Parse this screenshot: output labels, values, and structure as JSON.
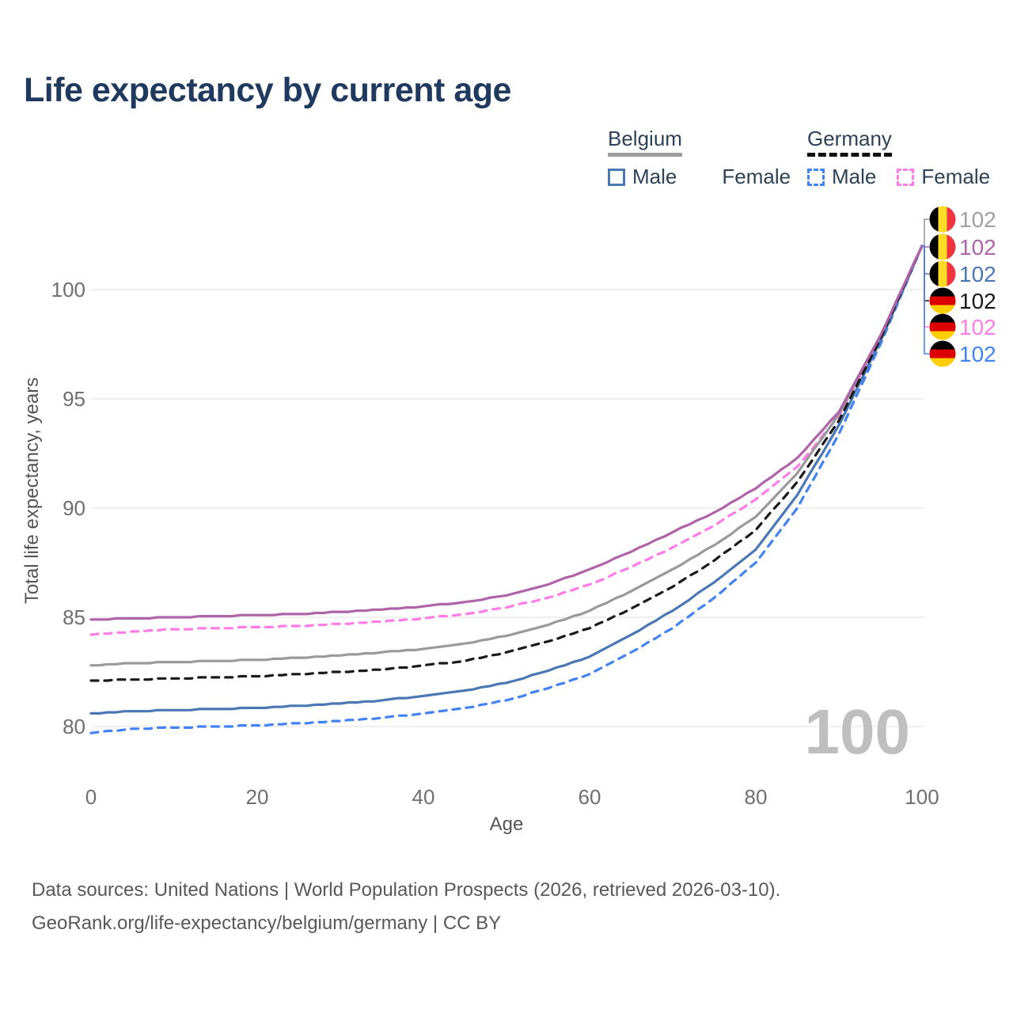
{
  "title": "Life expectancy by current age",
  "legend": {
    "groups": [
      {
        "label": "Belgium",
        "underline": "solid",
        "items": [
          {
            "label": "Male",
            "color": "#4a78b5",
            "dashed": false
          },
          {
            "label": "Female",
            "color": "#b064a8",
            "dashed": false
          }
        ]
      },
      {
        "label": "Germany",
        "underline": "dashed",
        "items": [
          {
            "label": "Male",
            "color": "#4183f2",
            "dashed": true
          },
          {
            "label": "Female",
            "color": "#ff7be5",
            "dashed": true
          }
        ]
      }
    ]
  },
  "footer": {
    "line1": "Data sources: United Nations | World Population Prospects (2026, retrieved 2026-03-10).",
    "line2": "GeoRank.org/life-expectancy/belgium/germany | CC BY"
  },
  "chart_data": {
    "type": "line",
    "title": "Life expectancy by current age",
    "xlabel": "Age",
    "ylabel": "Total life expectancy, years",
    "x_ticks": [
      0,
      20,
      40,
      60,
      80,
      100
    ],
    "y_ticks": [
      80,
      85,
      90,
      95,
      100
    ],
    "xlim": [
      0,
      100
    ],
    "ylim": [
      79,
      103
    ],
    "grid": "horizontal",
    "legend_position": "top-right",
    "watermark": "100",
    "ages": [
      0,
      5,
      10,
      15,
      20,
      25,
      30,
      35,
      40,
      45,
      50,
      55,
      60,
      65,
      70,
      75,
      80,
      85,
      90,
      95,
      100
    ],
    "series": [
      {
        "name": "Belgium",
        "country": "Belgium",
        "sex": "Both",
        "color": "#9a9a9a",
        "label_color": "#a0a0a0",
        "dashed": false,
        "flag": "belgium",
        "end_label": "102",
        "z": 3,
        "values": [
          82.8,
          82.9,
          82.95,
          83.0,
          83.05,
          83.15,
          83.25,
          83.4,
          83.55,
          83.8,
          84.15,
          84.65,
          85.3,
          86.2,
          87.2,
          88.3,
          89.6,
          91.6,
          94.3,
          97.9,
          102
        ]
      },
      {
        "name": "Belgium Female",
        "country": "Belgium",
        "sex": "Female",
        "color": "#b064a8",
        "label_color": "#b064a8",
        "dashed": false,
        "flag": "belgium",
        "end_label": "102",
        "z": 5,
        "values": [
          84.9,
          84.95,
          85.0,
          85.05,
          85.1,
          85.15,
          85.25,
          85.35,
          85.5,
          85.7,
          86.0,
          86.5,
          87.2,
          88.0,
          88.9,
          89.8,
          90.9,
          92.3,
          94.4,
          97.9,
          102
        ]
      },
      {
        "name": "Belgium Male",
        "country": "Belgium",
        "sex": "Male",
        "color": "#4a78b5",
        "label_color": "#4a78b5",
        "dashed": false,
        "flag": "belgium",
        "end_label": "102",
        "z": 2,
        "values": [
          80.6,
          80.7,
          80.75,
          80.8,
          80.85,
          80.95,
          81.05,
          81.2,
          81.4,
          81.65,
          82.0,
          82.55,
          83.2,
          84.2,
          85.3,
          86.6,
          88.1,
          90.6,
          93.8,
          97.65,
          102
        ]
      },
      {
        "name": "Germany",
        "country": "Germany",
        "sex": "Both",
        "color": "#1a1a1a",
        "label_color": "#1a1a1a",
        "dashed": true,
        "flag": "germany",
        "end_label": "102",
        "z": 4,
        "values": [
          82.1,
          82.15,
          82.2,
          82.25,
          82.3,
          82.4,
          82.5,
          82.6,
          82.8,
          83.0,
          83.4,
          83.9,
          84.5,
          85.4,
          86.4,
          87.6,
          89.0,
          91.2,
          94.0,
          97.75,
          102
        ]
      },
      {
        "name": "Germany Female",
        "country": "Germany",
        "sex": "Female",
        "color": "#ff7be5",
        "label_color": "#ff7be5",
        "dashed": true,
        "flag": "germany",
        "end_label": "102",
        "z": 1,
        "values": [
          84.2,
          84.35,
          84.45,
          84.5,
          84.55,
          84.6,
          84.7,
          84.8,
          84.95,
          85.15,
          85.45,
          85.9,
          86.5,
          87.3,
          88.2,
          89.2,
          90.4,
          91.9,
          94.2,
          97.85,
          102
        ]
      },
      {
        "name": "Germany Male",
        "country": "Germany",
        "sex": "Male",
        "color": "#4183f2",
        "label_color": "#4183f2",
        "dashed": true,
        "flag": "germany",
        "end_label": "102",
        "z": 0,
        "values": [
          79.7,
          79.9,
          79.95,
          80.0,
          80.05,
          80.15,
          80.25,
          80.4,
          80.6,
          80.85,
          81.2,
          81.75,
          82.4,
          83.4,
          84.5,
          85.9,
          87.5,
          90.0,
          93.4,
          97.5,
          102
        ]
      }
    ],
    "flag_colors": {
      "belgium": [
        "#000000",
        "#FDDA24",
        "#EF3340"
      ],
      "germany": [
        "#000000",
        "#DD0000",
        "#FFCE00"
      ]
    }
  }
}
